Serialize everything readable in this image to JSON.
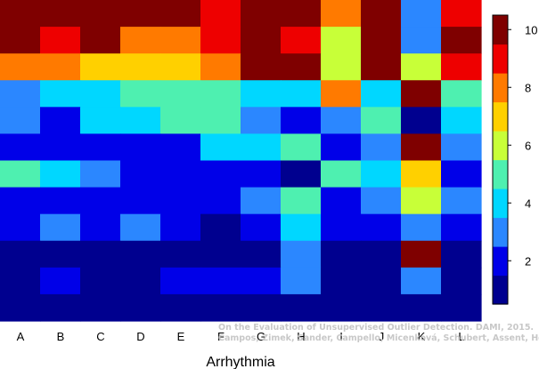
{
  "chart_data": {
    "type": "heatmap",
    "title": "",
    "xlabel": "Arrhythmia",
    "ylabel": "",
    "x_categories": [
      "A",
      "B",
      "C",
      "D",
      "E",
      "F",
      "G",
      "H",
      "I",
      "J",
      "K",
      "L"
    ],
    "n_rows": 12,
    "row_order": "top-to-bottom",
    "values": [
      [
        10,
        10,
        10,
        10,
        10,
        9,
        10,
        10,
        8,
        10,
        3,
        9
      ],
      [
        10,
        9,
        10,
        8,
        8,
        9,
        10,
        9,
        6,
        10,
        3,
        10
      ],
      [
        8,
        8,
        7,
        7,
        7,
        8,
        10,
        10,
        6,
        10,
        6,
        9
      ],
      [
        3,
        4,
        4,
        5,
        5,
        5,
        4,
        4,
        8,
        4,
        10,
        5
      ],
      [
        3,
        2,
        4,
        4,
        5,
        5,
        3,
        2,
        3,
        5,
        1,
        4
      ],
      [
        2,
        2,
        2,
        2,
        2,
        4,
        4,
        5,
        2,
        3,
        10,
        3
      ],
      [
        5,
        4,
        3,
        2,
        2,
        2,
        2,
        1,
        5,
        4,
        7,
        2
      ],
      [
        2,
        2,
        2,
        2,
        2,
        2,
        3,
        5,
        2,
        3,
        6,
        3
      ],
      [
        2,
        3,
        2,
        3,
        2,
        1,
        2,
        4,
        2,
        2,
        3,
        2
      ],
      [
        1,
        1,
        1,
        1,
        1,
        1,
        1,
        3,
        1,
        1,
        10,
        1
      ],
      [
        1,
        2,
        1,
        1,
        2,
        2,
        2,
        3,
        1,
        1,
        3,
        1
      ],
      [
        1,
        1,
        1,
        1,
        1,
        1,
        1,
        1,
        1,
        1,
        1,
        1
      ]
    ],
    "colorbar": {
      "min": 0.5,
      "max": 10.5,
      "ticks": [
        2,
        4,
        6,
        8,
        10
      ],
      "colors": [
        "#00008f",
        "#0000e8",
        "#2b87ff",
        "#00d7ff",
        "#4ef0b0",
        "#c8ff38",
        "#ffd000",
        "#ff7a00",
        "#ee0000",
        "#7f0000"
      ]
    },
    "grid": false,
    "legend": "colorbar-right"
  },
  "watermark": {
    "line1": "On the Evaluation of Unsupervised Outlier Detection. DAMI, 2015.",
    "line2": "Campos, Zimek, Sander, Campello, Micenková, Schubert, Assent, Houle"
  }
}
